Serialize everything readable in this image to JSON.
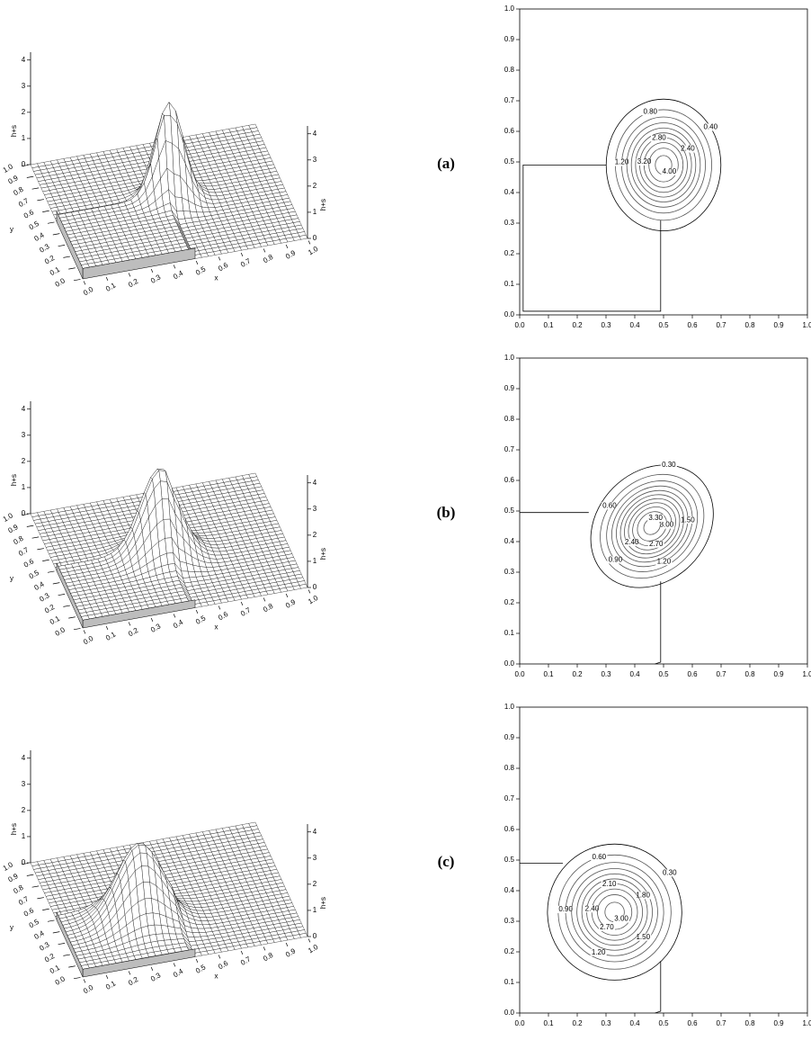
{
  "chart_data": [
    {
      "type": "surface",
      "xlabel": "x",
      "ylabel": "y",
      "zlabel": "h+s",
      "xlim": [
        0,
        1
      ],
      "ylim": [
        0,
        1
      ],
      "zlim": [
        0,
        4.3
      ],
      "xticks": [
        {
          "value": 0,
          "label": "0.0"
        },
        0.1,
        0.2,
        0.3,
        0.4,
        0.5,
        0.6,
        0.7,
        0.8,
        0.9,
        {
          "value": 1,
          "label": "1.0"
        }
      ],
      "yticks": [
        {
          "value": 0,
          "label": "0.0"
        },
        0.1,
        0.2,
        0.3,
        0.4,
        0.5,
        0.6,
        0.7,
        0.8,
        0.9,
        {
          "value": 1,
          "label": "1.0"
        }
      ],
      "zticks": [
        0,
        1,
        2,
        3,
        4
      ],
      "peak": 4.2
    },
    {
      "type": "contour",
      "label": "(a)",
      "xlim": [
        0,
        1
      ],
      "ylim": [
        0,
        1
      ],
      "xticks": [
        {
          "value": 0,
          "label": "0.0"
        },
        0.1,
        0.2,
        0.3,
        0.4,
        0.5,
        0.6,
        0.7,
        0.8,
        0.9,
        {
          "value": 1,
          "label": "1.0"
        }
      ],
      "yticks": [
        {
          "value": 0,
          "label": "0.0"
        },
        0.1,
        0.2,
        0.3,
        0.4,
        0.5,
        0.6,
        0.7,
        0.8,
        0.9,
        {
          "value": 1,
          "label": "1.0"
        }
      ],
      "peak": 4.2,
      "levels": [
        0.4,
        0.8,
        1.2,
        1.6,
        2.0,
        2.4,
        2.8,
        3.2,
        3.6,
        4.0
      ],
      "value_labels": [
        "0.40",
        "0.80",
        "1.20",
        null,
        null,
        "2.40",
        "2.80",
        "3.20",
        null,
        "4.00"
      ]
    },
    {
      "type": "surface",
      "xlabel": "x",
      "ylabel": "y",
      "zlabel": "h+s",
      "xlim": [
        0,
        1
      ],
      "ylim": [
        0,
        1
      ],
      "zlim": [
        0,
        4.3
      ],
      "xticks": [
        {
          "value": 0,
          "label": "0.0"
        },
        0.1,
        0.2,
        0.3,
        0.4,
        0.5,
        0.6,
        0.7,
        0.8,
        0.9,
        {
          "value": 1,
          "label": "1.0"
        }
      ],
      "yticks": [
        {
          "value": 0,
          "label": "0.0"
        },
        0.1,
        0.2,
        0.3,
        0.4,
        0.5,
        0.6,
        0.7,
        0.8,
        0.9,
        {
          "value": 1,
          "label": "1.0"
        }
      ],
      "zticks": [
        0,
        1,
        2,
        3,
        4
      ],
      "peak": 3.45
    },
    {
      "type": "contour",
      "label": "(b)",
      "xlim": [
        0,
        1
      ],
      "ylim": [
        0,
        1
      ],
      "xticks": [
        {
          "value": 0,
          "label": "0.0"
        },
        0.1,
        0.2,
        0.3,
        0.4,
        0.5,
        0.6,
        0.7,
        0.8,
        0.9,
        {
          "value": 1,
          "label": "1.0"
        }
      ],
      "yticks": [
        {
          "value": 0,
          "label": "0.0"
        },
        0.1,
        0.2,
        0.3,
        0.4,
        0.5,
        0.6,
        0.7,
        0.8,
        0.9,
        {
          "value": 1,
          "label": "1.0"
        }
      ],
      "peak": 3.45,
      "levels": [
        0.3,
        0.6,
        0.9,
        1.2,
        1.5,
        1.8,
        2.1,
        2.4,
        2.7,
        3.0,
        3.3
      ],
      "value_labels": [
        "0.30",
        "0.60",
        "0.90",
        "1.20",
        "1.50",
        null,
        null,
        "2.40",
        "2.70",
        "3.00",
        "3.30"
      ]
    },
    {
      "type": "surface",
      "xlabel": "x",
      "ylabel": "y",
      "zlabel": "h+s",
      "xlim": [
        0,
        1
      ],
      "ylim": [
        0,
        1
      ],
      "zlim": [
        0,
        4.3
      ],
      "xticks": [
        {
          "value": 0,
          "label": "0.0"
        },
        0.1,
        0.2,
        0.3,
        0.4,
        0.5,
        0.6,
        0.7,
        0.8,
        0.9,
        {
          "value": 1,
          "label": "1.0"
        }
      ],
      "yticks": [
        {
          "value": 0,
          "label": "0.0"
        },
        0.1,
        0.2,
        0.3,
        0.4,
        0.5,
        0.6,
        0.7,
        0.8,
        0.9,
        {
          "value": 1,
          "label": "1.0"
        }
      ],
      "zticks": [
        0,
        1,
        2,
        3,
        4
      ],
      "peak": 3.15
    },
    {
      "type": "contour",
      "label": "(c)",
      "xlim": [
        0,
        1
      ],
      "ylim": [
        0,
        1
      ],
      "xticks": [
        {
          "value": 0,
          "label": "0.0"
        },
        0.1,
        0.2,
        0.3,
        0.4,
        0.5,
        0.6,
        0.7,
        0.8,
        0.9,
        {
          "value": 1,
          "label": "1.0"
        }
      ],
      "yticks": [
        {
          "value": 0,
          "label": "0.0"
        },
        0.1,
        0.2,
        0.3,
        0.4,
        0.5,
        0.6,
        0.7,
        0.8,
        0.9,
        {
          "value": 1,
          "label": "1.0"
        }
      ],
      "peak": 3.15,
      "levels": [
        0.3,
        0.6,
        0.9,
        1.2,
        1.5,
        1.8,
        2.1,
        2.4,
        2.7,
        3.0
      ],
      "value_labels": [
        "0.30",
        "0.60",
        "0.90",
        "1.20",
        "1.50",
        "1.80",
        "2.10",
        "2.40",
        "2.70",
        "3.00"
      ]
    }
  ]
}
